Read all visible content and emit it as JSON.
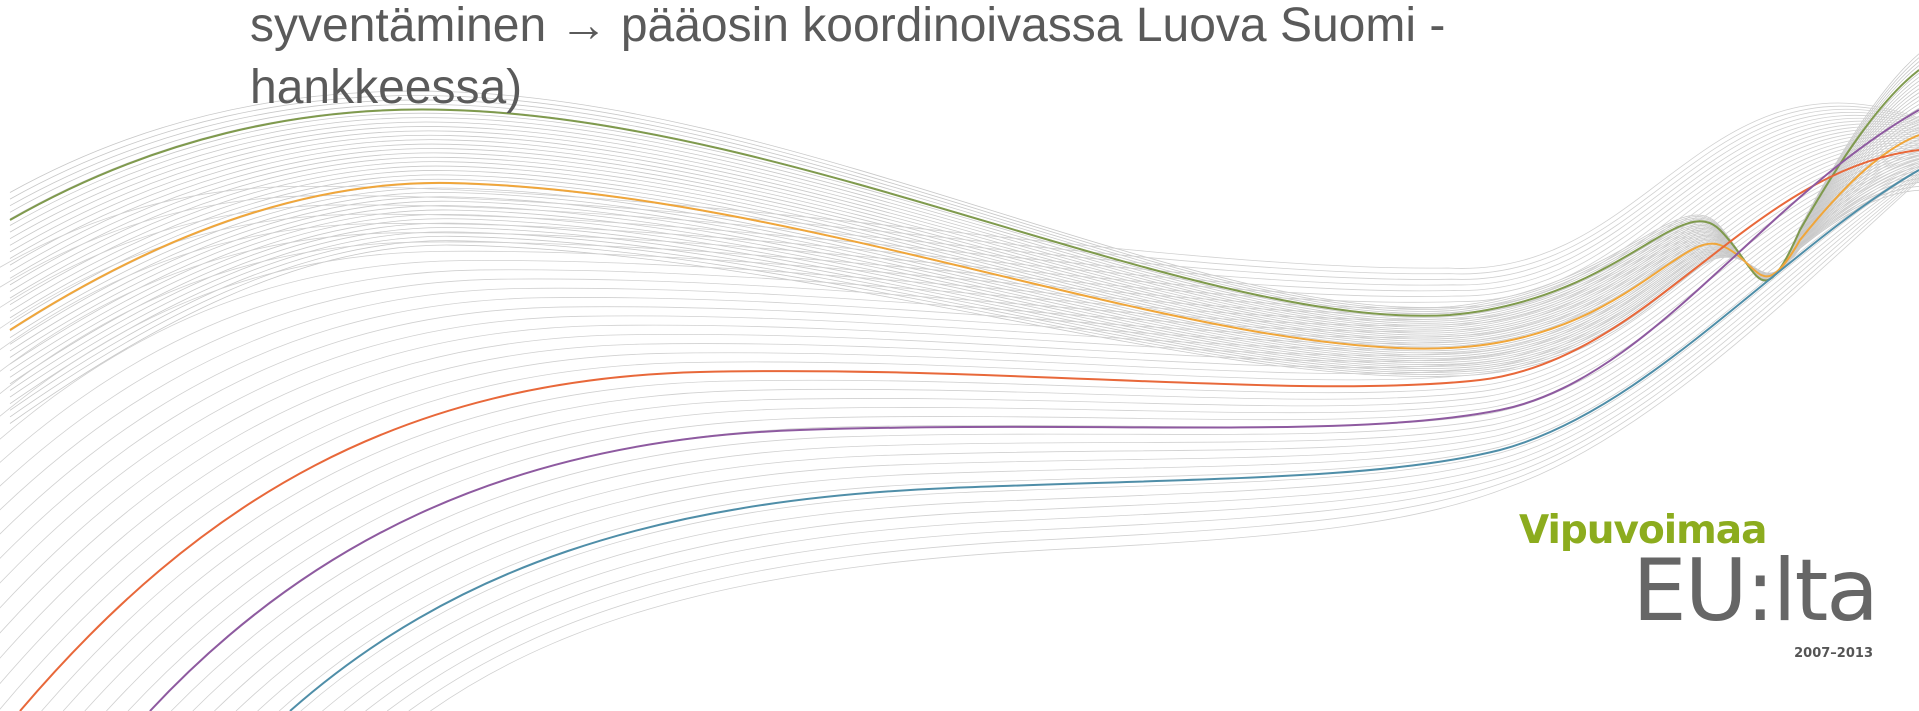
{
  "body": {
    "lines": [
      "syventäminen → pääosin koordinoivassa Luova Suomi -",
      "hankkeessa)"
    ]
  },
  "logo": {
    "title": "Vipuvoimaa",
    "subtitle": "EU:lta",
    "years": "2007–2013"
  }
}
